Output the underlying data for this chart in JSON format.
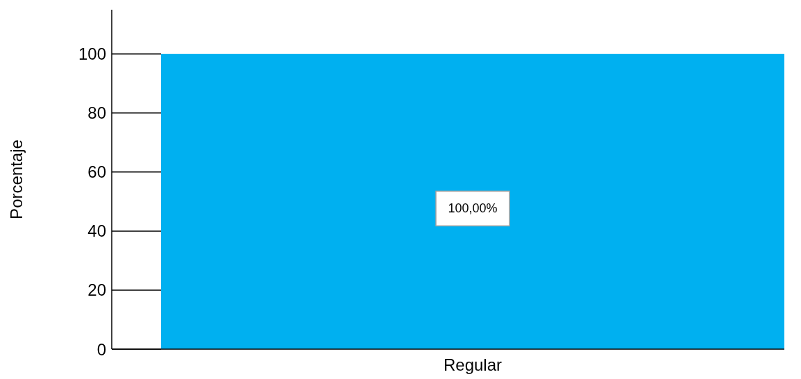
{
  "chart_data": {
    "type": "bar",
    "ylabel": "Porcentaje",
    "categories": [
      "Regular"
    ],
    "values": [
      100
    ],
    "value_labels": [
      "100,00%"
    ],
    "color": "#00b0f0",
    "ylim": [
      0,
      115
    ],
    "yticks": [
      0,
      20,
      40,
      60,
      80,
      100
    ]
  }
}
